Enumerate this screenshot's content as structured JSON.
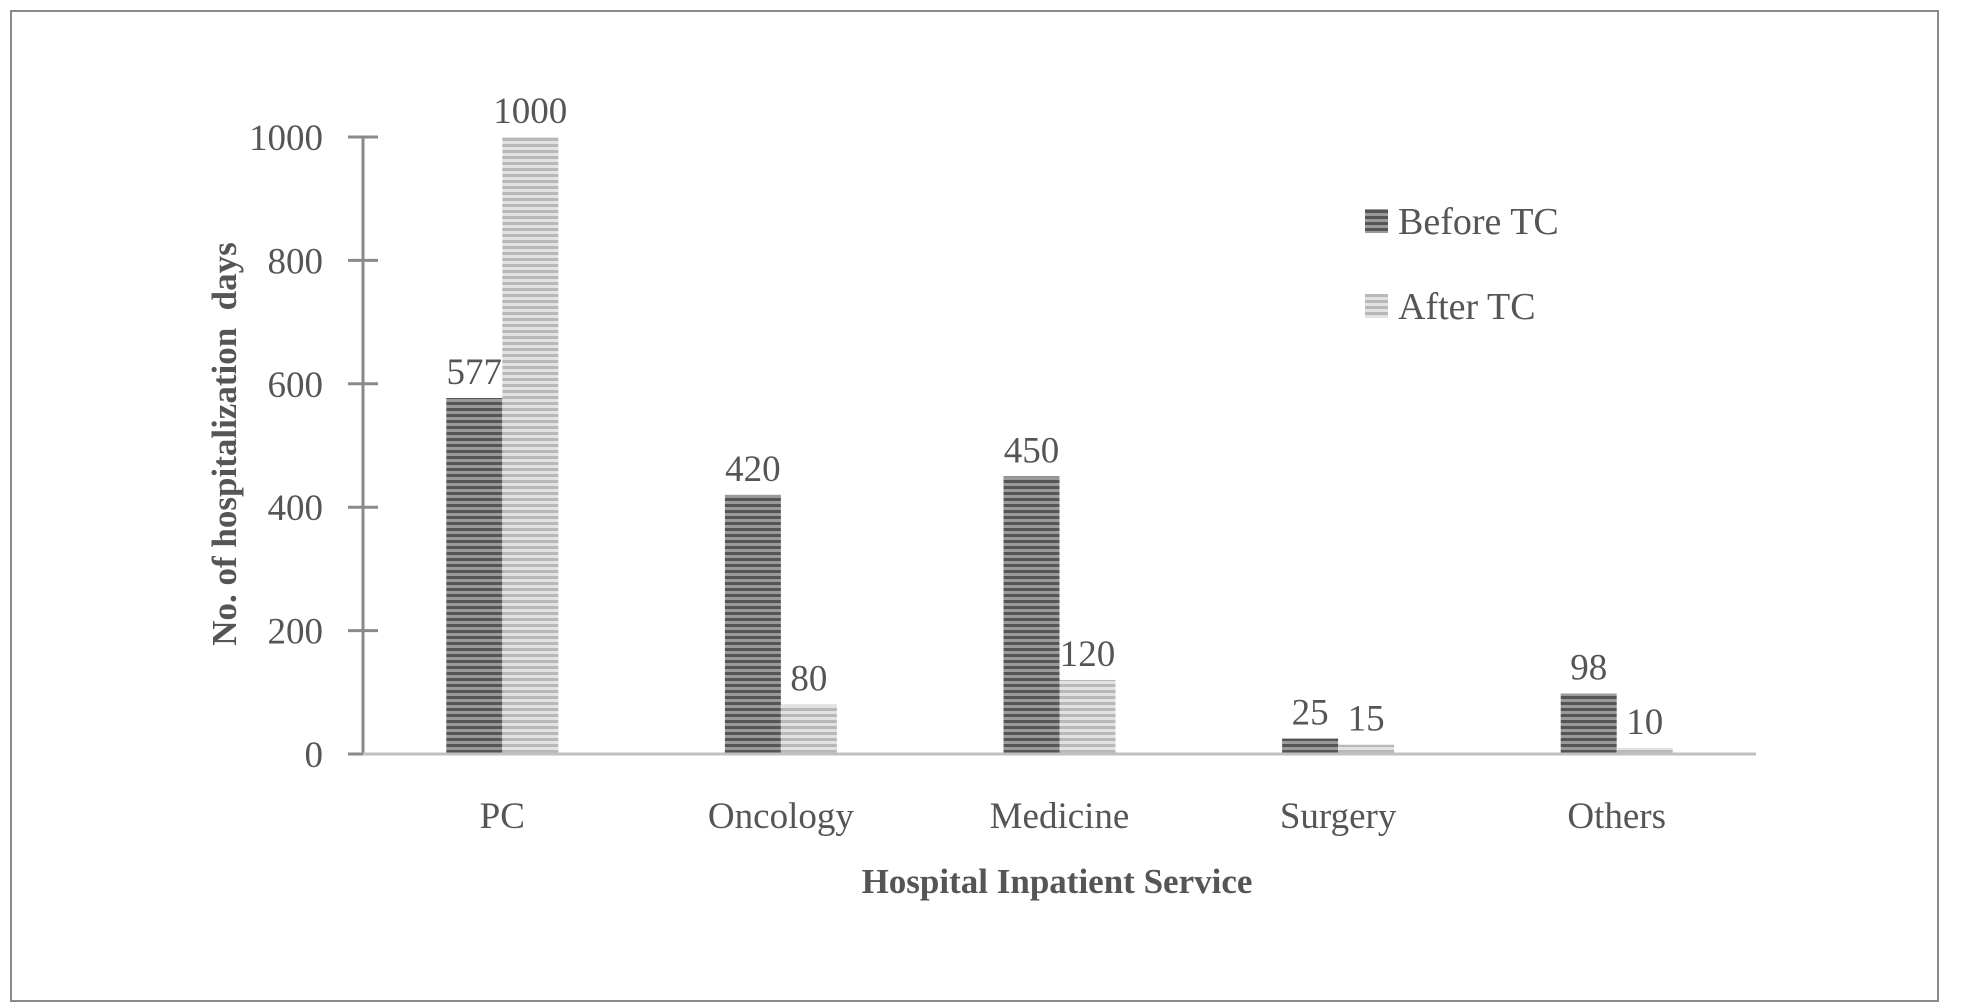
{
  "chart_data": {
    "type": "bar",
    "title": "",
    "xlabel": "Hospital Inpatient Service",
    "ylabel": "No. of hospitalization  days",
    "categories": [
      "PC",
      "Oncology",
      "Medicine",
      "Surgery",
      "Others"
    ],
    "series": [
      {
        "name": "Before TC",
        "values": [
          577,
          420,
          450,
          25,
          98
        ],
        "color": "#5f5f5f"
      },
      {
        "name": "After TC",
        "values": [
          1000,
          80,
          120,
          15,
          10
        ],
        "color": "#c8c8c8"
      }
    ],
    "ylim": [
      0,
      1000
    ],
    "yticks": [
      0,
      200,
      400,
      600,
      800,
      1000
    ],
    "grid": false,
    "legend_position": "top-right",
    "data_labels": true
  }
}
